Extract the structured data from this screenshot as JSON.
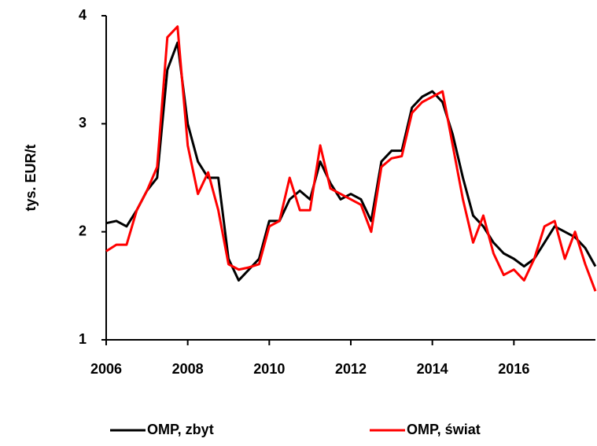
{
  "chart_data": {
    "type": "line",
    "ylabel": "tys. EUR/t",
    "x": [
      2006.0,
      2006.25,
      2006.5,
      2006.75,
      2007.0,
      2007.25,
      2007.5,
      2007.75,
      2008.0,
      2008.25,
      2008.5,
      2008.75,
      2009.0,
      2009.25,
      2009.5,
      2009.75,
      2010.0,
      2010.25,
      2010.5,
      2010.75,
      2011.0,
      2011.25,
      2011.5,
      2011.75,
      2012.0,
      2012.25,
      2012.5,
      2012.75,
      2013.0,
      2013.25,
      2013.5,
      2013.75,
      2014.0,
      2014.25,
      2014.5,
      2014.75,
      2015.0,
      2015.25,
      2015.5,
      2015.75,
      2016.0,
      2016.25,
      2016.5,
      2016.75,
      2017.0,
      2017.25,
      2017.5,
      2017.75,
      2018.0
    ],
    "series": [
      {
        "name": "OMP, zbyt",
        "color": "#000000",
        "values": [
          2.08,
          2.1,
          2.05,
          2.2,
          2.38,
          2.5,
          3.5,
          3.75,
          3.0,
          2.65,
          2.5,
          2.5,
          1.75,
          1.55,
          1.65,
          1.75,
          2.1,
          2.1,
          2.3,
          2.38,
          2.3,
          2.65,
          2.45,
          2.3,
          2.35,
          2.3,
          2.1,
          2.65,
          2.75,
          2.75,
          3.15,
          3.25,
          3.3,
          3.2,
          2.9,
          2.5,
          2.15,
          2.05,
          1.9,
          1.8,
          1.75,
          1.68,
          1.75,
          1.9,
          2.05,
          2.0,
          1.95,
          1.85,
          1.68
        ]
      },
      {
        "name": "OMP, świat",
        "color": "#ff0000",
        "values": [
          1.82,
          1.88,
          1.88,
          2.2,
          2.38,
          2.6,
          3.8,
          3.9,
          2.8,
          2.35,
          2.55,
          2.2,
          1.7,
          1.65,
          1.67,
          1.7,
          2.05,
          2.1,
          2.5,
          2.2,
          2.2,
          2.8,
          2.4,
          2.35,
          2.3,
          2.25,
          2.0,
          2.6,
          2.68,
          2.7,
          3.1,
          3.2,
          3.25,
          3.3,
          2.8,
          2.3,
          1.9,
          2.15,
          1.8,
          1.6,
          1.65,
          1.55,
          1.75,
          2.05,
          2.1,
          1.75,
          2.0,
          1.7,
          1.45
        ]
      }
    ],
    "xlim": [
      2006,
      2018
    ],
    "xticks": [
      2006,
      2008,
      2010,
      2012,
      2014,
      2016
    ],
    "ylim": [
      1,
      4
    ],
    "yticks": [
      1,
      2,
      3,
      4
    ],
    "legend": "bottom"
  }
}
